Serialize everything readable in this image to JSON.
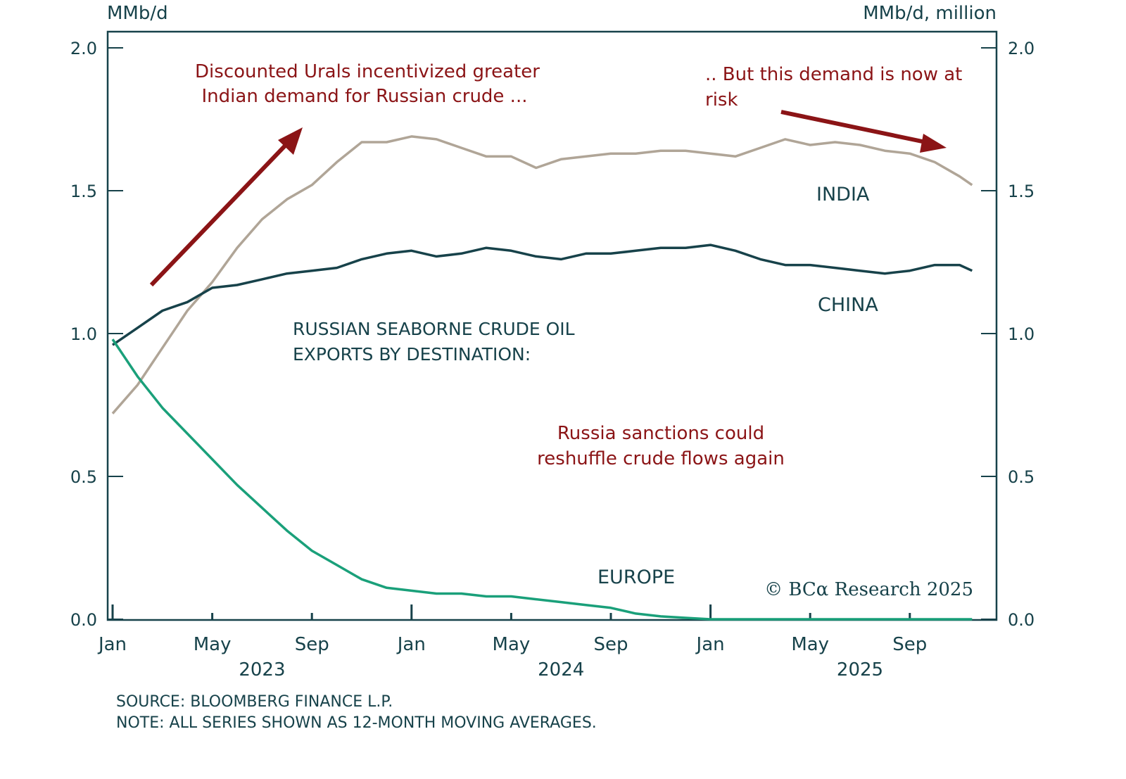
{
  "chart_data": {
    "type": "line",
    "title": "RUSSIAN SEABORNE CRUDE OIL EXPORTS BY DESTINATION:",
    "title_lines": [
      "RUSSIAN SEABORNE CRUDE OIL",
      "EXPORTS BY DESTINATION:"
    ],
    "ylabel_left": "MMb/d",
    "ylabel_right": "MMb/d, million",
    "ylim": [
      0,
      2.0
    ],
    "yticks": [
      "0.0",
      "0.5",
      "1.0",
      "1.5",
      "2.0"
    ],
    "ytick_values": [
      0,
      0.5,
      1.0,
      1.5,
      2.0
    ],
    "xlim_months": [
      0,
      35
    ],
    "xticks": [
      {
        "label": "Jan",
        "month": 0
      },
      {
        "label": "May",
        "month": 4
      },
      {
        "label": "Sep",
        "month": 8
      },
      {
        "label": "Jan",
        "month": 12
      },
      {
        "label": "May",
        "month": 16
      },
      {
        "label": "Sep",
        "month": 20
      },
      {
        "label": "Jan",
        "month": 24
      },
      {
        "label": "May",
        "month": 28
      },
      {
        "label": "Sep",
        "month": 32
      }
    ],
    "year_labels": [
      {
        "label": "2023",
        "month": 6
      },
      {
        "label": "2024",
        "month": 18
      },
      {
        "label": "2025",
        "month": 30
      }
    ],
    "grid": false,
    "x_unit": "months since Jan 2023",
    "series": [
      {
        "name": "INDIA",
        "color": "#b0a597",
        "x": [
          0,
          1,
          2,
          3,
          4,
          5,
          6,
          7,
          8,
          9,
          10,
          11,
          12,
          13,
          14,
          15,
          16,
          17,
          18,
          19,
          20,
          21,
          22,
          23,
          24,
          25,
          26,
          27,
          28,
          29,
          30,
          31,
          32,
          33,
          34,
          34.5
        ],
        "values": [
          0.72,
          0.82,
          0.95,
          1.08,
          1.18,
          1.3,
          1.4,
          1.47,
          1.52,
          1.6,
          1.67,
          1.67,
          1.69,
          1.68,
          1.65,
          1.62,
          1.62,
          1.58,
          1.61,
          1.62,
          1.63,
          1.63,
          1.64,
          1.64,
          1.63,
          1.62,
          1.65,
          1.68,
          1.66,
          1.67,
          1.66,
          1.64,
          1.63,
          1.6,
          1.55,
          1.52
        ]
      },
      {
        "name": "CHINA",
        "color": "#17424a",
        "x": [
          0,
          1,
          2,
          3,
          4,
          5,
          6,
          7,
          8,
          9,
          10,
          11,
          12,
          13,
          14,
          15,
          16,
          17,
          18,
          19,
          20,
          21,
          22,
          23,
          24,
          25,
          26,
          27,
          28,
          29,
          30,
          31,
          32,
          33,
          34,
          34.5
        ],
        "values": [
          0.96,
          1.02,
          1.08,
          1.11,
          1.16,
          1.17,
          1.19,
          1.21,
          1.22,
          1.23,
          1.26,
          1.28,
          1.29,
          1.27,
          1.28,
          1.3,
          1.29,
          1.27,
          1.26,
          1.28,
          1.28,
          1.29,
          1.3,
          1.3,
          1.31,
          1.29,
          1.26,
          1.24,
          1.24,
          1.23,
          1.22,
          1.21,
          1.22,
          1.24,
          1.24,
          1.22
        ]
      },
      {
        "name": "EUROPE",
        "color": "#1aa07a",
        "x": [
          0,
          1,
          2,
          3,
          4,
          5,
          6,
          7,
          8,
          9,
          10,
          11,
          12,
          13,
          14,
          15,
          16,
          17,
          18,
          19,
          20,
          21,
          22,
          23,
          24,
          25,
          26,
          27,
          28,
          29,
          30,
          31,
          32,
          33,
          34,
          34.5
        ],
        "values": [
          0.98,
          0.85,
          0.74,
          0.65,
          0.56,
          0.47,
          0.39,
          0.31,
          0.24,
          0.19,
          0.14,
          0.11,
          0.1,
          0.09,
          0.09,
          0.08,
          0.08,
          0.07,
          0.06,
          0.05,
          0.04,
          0.02,
          0.01,
          0.005,
          0.0,
          0.0,
          0.0,
          0.0,
          0.0,
          0.0,
          0.0,
          0.0,
          0.0,
          0.0,
          0.0,
          0.0
        ]
      }
    ],
    "series_labels": [
      {
        "text": "INDIA",
        "series": "INDIA"
      },
      {
        "text": "CHINA",
        "series": "CHINA"
      },
      {
        "text": "EUROPE",
        "series": "EUROPE"
      }
    ],
    "annotations": [
      {
        "lines": [
          "Discounted Urals incentivized greater",
          "Indian demand for Russian crude ..."
        ],
        "color": "#8b1416"
      },
      {
        "lines": [
          ".. But this demand is now at",
          "risk"
        ],
        "color": "#8b1416"
      },
      {
        "lines": [
          "Russia sanctions could",
          "reshuffle crude flows again"
        ],
        "color": "#8b1416"
      }
    ],
    "arrows": [
      {
        "name": "up-arrow",
        "color": "#8b1416",
        "direction": "up-right"
      },
      {
        "name": "down-arrow",
        "color": "#8b1416",
        "direction": "down-right"
      }
    ],
    "copyright": "© BCα Research 2025",
    "source": "SOURCE: BLOOMBERG FINANCE L.P.",
    "note": "NOTE: ALL SERIES SHOWN AS 12-MONTH MOVING AVERAGES."
  },
  "colors": {
    "axis": "#17424a",
    "accent_red": "#8b1416",
    "india": "#b0a597",
    "china": "#17424a",
    "europe": "#1aa07a"
  }
}
